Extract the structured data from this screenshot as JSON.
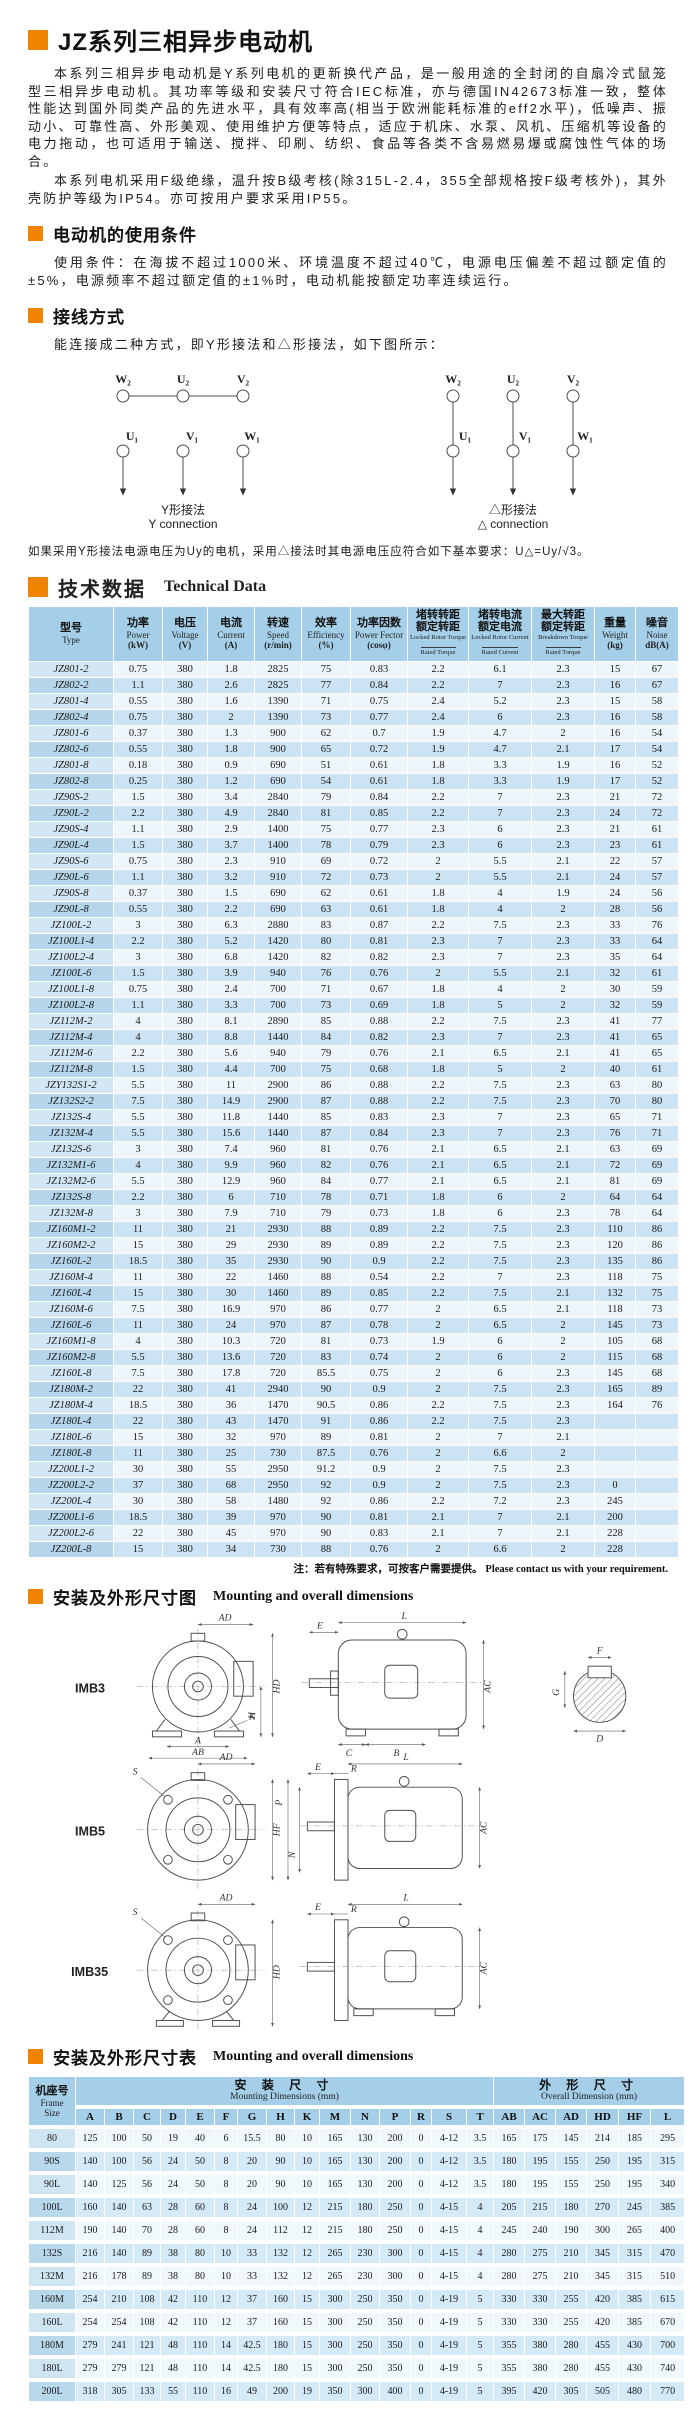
{
  "colors": {
    "accent_orange": "#f08300",
    "table_header_blue": "#a5cfe9",
    "row_blue": "#cbe3f3",
    "row_light": "#eef6fb"
  },
  "doc": {
    "title": "JZ系列三相异步电动机"
  },
  "intro": {
    "p1": "本系列三相异步电动机是Y系列电机的更新换代产品，是一般用途的全封闭的自扇冷式鼠笼型三相异步电动机。其功率等级和安装尺寸符合IEC标准，亦与德国IN42673标准一致，整体性能达到国外同类产品的先进水平，具有效率高(相当于欧洲能耗标准的eff2水平)，低噪声、振动小、可靠性高、外形美观、使用维护方便等特点，适应于机床、水泵、风机、压缩机等设备的电力拖动，也可适用于输送、搅拌、印刷、纺织、食品等各类不含易燃易爆或腐蚀性气体的场合。",
    "p2": "本系列电机采用F级绝缘，温升按B级考核(除315L-2.4，355全部规格按F级考核外)，其外壳防护等级为IP54。亦可按用户要求采用IP55。"
  },
  "usage": {
    "title": "电动机的使用条件",
    "body": "使用条件：在海拔不超过1000米、环境温度不超过40℃，电源电压偏差不超过额定值的±5%，电源频率不超过额定值的±1%时，电动机能按额定功率连续运行。"
  },
  "wiring": {
    "title": "接线方式",
    "intro": "能连接成二种方式，即Y形接法和△形接法，如下图所示：",
    "top": [
      "W₂",
      "U₂",
      "V₂"
    ],
    "bottom": [
      "U₁",
      "V₁",
      "W₁"
    ],
    "y_zh": "Y形接法",
    "y_en": "Y connection",
    "d_zh": "△形接法",
    "d_en": "△ connection",
    "formula": "如果采用Y形接法电源电压为Uy的电机，采用△接法时其电源电压应符合如下基本要求：U△=Uy/√3。"
  },
  "technical_table": {
    "title_zh": "技术数据",
    "title_en": "Technical Data",
    "headers": [
      {
        "zh": "型号",
        "en": "Type"
      },
      {
        "zh": "功率",
        "en": "Power",
        "unit": "(kW)"
      },
      {
        "zh": "电压",
        "en": "Voltage",
        "unit": "(V)"
      },
      {
        "zh": "电流",
        "en": "Current",
        "unit": "(A)"
      },
      {
        "zh": "转速",
        "en": "Speed",
        "unit": "(r/min)"
      },
      {
        "zh": "效率",
        "en": "Efficiency",
        "unit": "(%)"
      },
      {
        "zh": "功率因数",
        "en": "Power Fector",
        "unit": "(cosφ)"
      },
      {
        "zh": "堵转转距",
        "zh2": "额定转距",
        "en": "Locked Rotor Torque",
        "en2": "Rated Torque"
      },
      {
        "zh": "堵转电流",
        "zh2": "额定电流",
        "en": "Locked Rotor Current",
        "en2": "Rated Current"
      },
      {
        "zh": "最大转距",
        "zh2": "额定转距",
        "en": "Breakdown Torque",
        "en2": "Rated Torque"
      },
      {
        "zh": "重量",
        "en": "Weight",
        "unit": "(kg)"
      },
      {
        "zh": "噪音",
        "en": "Noise",
        "unit": "dB(A)"
      }
    ],
    "rows": [
      [
        "JZ801-2",
        "0.75",
        "380",
        "1.8",
        "2825",
        "75",
        "0.83",
        "2.2",
        "6.1",
        "2.3",
        "15",
        "67"
      ],
      [
        "JZ802-2",
        "1.1",
        "380",
        "2.6",
        "2825",
        "77",
        "0.84",
        "2.2",
        "7",
        "2.3",
        "16",
        "67"
      ],
      [
        "JZ801-4",
        "0.55",
        "380",
        "1.6",
        "1390",
        "71",
        "0.75",
        "2.4",
        "5.2",
        "2.3",
        "15",
        "58"
      ],
      [
        "JZ802-4",
        "0.75",
        "380",
        "2",
        "1390",
        "73",
        "0.77",
        "2.4",
        "6",
        "2.3",
        "16",
        "58"
      ],
      [
        "JZ801-6",
        "0.37",
        "380",
        "1.3",
        "900",
        "62",
        "0.7",
        "1.9",
        "4.7",
        "2",
        "16",
        "54"
      ],
      [
        "JZ802-6",
        "0.55",
        "380",
        "1.8",
        "900",
        "65",
        "0.72",
        "1.9",
        "4.7",
        "2.1",
        "17",
        "54"
      ],
      [
        "JZ801-8",
        "0.18",
        "380",
        "0.9",
        "690",
        "51",
        "0.61",
        "1.8",
        "3.3",
        "1.9",
        "16",
        "52"
      ],
      [
        "JZ802-8",
        "0.25",
        "380",
        "1.2",
        "690",
        "54",
        "0.61",
        "1.8",
        "3.3",
        "1.9",
        "17",
        "52"
      ],
      [
        "JZ90S-2",
        "1.5",
        "380",
        "3.4",
        "2840",
        "79",
        "0.84",
        "2.2",
        "7",
        "2.3",
        "21",
        "72"
      ],
      [
        "JZ90L-2",
        "2.2",
        "380",
        "4.9",
        "2840",
        "81",
        "0.85",
        "2.2",
        "7",
        "2.3",
        "24",
        "72"
      ],
      [
        "JZ90S-4",
        "1.1",
        "380",
        "2.9",
        "1400",
        "75",
        "0.77",
        "2.3",
        "6",
        "2.3",
        "21",
        "61"
      ],
      [
        "JZ90L-4",
        "1.5",
        "380",
        "3.7",
        "1400",
        "78",
        "0.79",
        "2.3",
        "6",
        "2.3",
        "23",
        "61"
      ],
      [
        "JZ90S-6",
        "0.75",
        "380",
        "2.3",
        "910",
        "69",
        "0.72",
        "2",
        "5.5",
        "2.1",
        "22",
        "57"
      ],
      [
        "JZ90L-6",
        "1.1",
        "380",
        "3.2",
        "910",
        "72",
        "0.73",
        "2",
        "5.5",
        "2.1",
        "24",
        "57"
      ],
      [
        "JZ90S-8",
        "0.37",
        "380",
        "1.5",
        "690",
        "62",
        "0.61",
        "1.8",
        "4",
        "1.9",
        "24",
        "56"
      ],
      [
        "JZ90L-8",
        "0.55",
        "380",
        "2.2",
        "690",
        "63",
        "0.61",
        "1.8",
        "4",
        "2",
        "28",
        "56"
      ],
      [
        "JZ100L-2",
        "3",
        "380",
        "6.3",
        "2880",
        "83",
        "0.87",
        "2.2",
        "7.5",
        "2.3",
        "33",
        "76"
      ],
      [
        "JZ100L1-4",
        "2.2",
        "380",
        "5.2",
        "1420",
        "80",
        "0.81",
        "2.3",
        "7",
        "2.3",
        "33",
        "64"
      ],
      [
        "JZ100L2-4",
        "3",
        "380",
        "6.8",
        "1420",
        "82",
        "0.82",
        "2.3",
        "7",
        "2.3",
        "35",
        "64"
      ],
      [
        "JZ100L-6",
        "1.5",
        "380",
        "3.9",
        "940",
        "76",
        "0.76",
        "2",
        "5.5",
        "2.1",
        "32",
        "61"
      ],
      [
        "JZ100L1-8",
        "0.75",
        "380",
        "2.4",
        "700",
        "71",
        "0.67",
        "1.8",
        "4",
        "2",
        "30",
        "59"
      ],
      [
        "JZ100L2-8",
        "1.1",
        "380",
        "3.3",
        "700",
        "73",
        "0.69",
        "1.8",
        "5",
        "2",
        "32",
        "59"
      ],
      [
        "JZ112M-2",
        "4",
        "380",
        "8.1",
        "2890",
        "85",
        "0.88",
        "2.2",
        "7.5",
        "2.3",
        "41",
        "77"
      ],
      [
        "JZ112M-4",
        "4",
        "380",
        "8.8",
        "1440",
        "84",
        "0.82",
        "2.3",
        "7",
        "2.3",
        "41",
        "65"
      ],
      [
        "JZ112M-6",
        "2.2",
        "380",
        "5.6",
        "940",
        "79",
        "0.76",
        "2.1",
        "6.5",
        "2.1",
        "41",
        "65"
      ],
      [
        "JZ112M-8",
        "1.5",
        "380",
        "4.4",
        "700",
        "75",
        "0.68",
        "1.8",
        "5",
        "2",
        "40",
        "61"
      ],
      [
        "JZY132S1-2",
        "5.5",
        "380",
        "11",
        "2900",
        "86",
        "0.88",
        "2.2",
        "7.5",
        "2.3",
        "63",
        "80"
      ],
      [
        "JZ132S2-2",
        "7.5",
        "380",
        "14.9",
        "2900",
        "87",
        "0.88",
        "2.2",
        "7.5",
        "2.3",
        "70",
        "80"
      ],
      [
        "JZ132S-4",
        "5.5",
        "380",
        "11.8",
        "1440",
        "85",
        "0.83",
        "2.3",
        "7",
        "2.3",
        "65",
        "71"
      ],
      [
        "JZ132M-4",
        "5.5",
        "380",
        "15.6",
        "1440",
        "87",
        "0.84",
        "2.3",
        "7",
        "2.3",
        "76",
        "71"
      ],
      [
        "JZ132S-6",
        "3",
        "380",
        "7.4",
        "960",
        "81",
        "0.76",
        "2.1",
        "6.5",
        "2.1",
        "63",
        "69"
      ],
      [
        "JZ132M1-6",
        "4",
        "380",
        "9.9",
        "960",
        "82",
        "0.76",
        "2.1",
        "6.5",
        "2.1",
        "72",
        "69"
      ],
      [
        "JZ132M2-6",
        "5.5",
        "380",
        "12.9",
        "960",
        "84",
        "0.77",
        "2.1",
        "6.5",
        "2.1",
        "81",
        "69"
      ],
      [
        "JZ132S-8",
        "2.2",
        "380",
        "6",
        "710",
        "78",
        "0.71",
        "1.8",
        "6",
        "2",
        "64",
        "64"
      ],
      [
        "JZ132M-8",
        "3",
        "380",
        "7.9",
        "710",
        "79",
        "0.73",
        "1.8",
        "6",
        "2.3",
        "78",
        "64"
      ],
      [
        "JZ160M1-2",
        "11",
        "380",
        "21",
        "2930",
        "88",
        "0.89",
        "2.2",
        "7.5",
        "2.3",
        "110",
        "86"
      ],
      [
        "JZ160M2-2",
        "15",
        "380",
        "29",
        "2930",
        "89",
        "0.89",
        "2.2",
        "7.5",
        "2.3",
        "120",
        "86"
      ],
      [
        "JZ160L-2",
        "18.5",
        "380",
        "35",
        "2930",
        "90",
        "0.9",
        "2.2",
        "7.5",
        "2.3",
        "135",
        "86"
      ],
      [
        "JZ160M-4",
        "11",
        "380",
        "22",
        "1460",
        "88",
        "0.54",
        "2.2",
        "7",
        "2.3",
        "118",
        "75"
      ],
      [
        "JZ160L-4",
        "15",
        "380",
        "30",
        "1460",
        "89",
        "0.85",
        "2.2",
        "7.5",
        "2.1",
        "132",
        "75"
      ],
      [
        "JZ160M-6",
        "7.5",
        "380",
        "16.9",
        "970",
        "86",
        "0.77",
        "2",
        "6.5",
        "2.1",
        "118",
        "73"
      ],
      [
        "JZ160L-6",
        "11",
        "380",
        "24",
        "970",
        "87",
        "0.78",
        "2",
        "6.5",
        "2",
        "145",
        "73"
      ],
      [
        "JZ160M1-8",
        "4",
        "380",
        "10.3",
        "720",
        "81",
        "0.73",
        "1.9",
        "6",
        "2",
        "105",
        "68"
      ],
      [
        "JZ160M2-8",
        "5.5",
        "380",
        "13.6",
        "720",
        "83",
        "0.74",
        "2",
        "6",
        "2",
        "115",
        "68"
      ],
      [
        "JZ160L-8",
        "7.5",
        "380",
        "17.8",
        "720",
        "85.5",
        "0.75",
        "2",
        "6",
        "2.3",
        "145",
        "68"
      ],
      [
        "JZ180M-2",
        "22",
        "380",
        "41",
        "2940",
        "90",
        "0.9",
        "2",
        "7.5",
        "2.3",
        "165",
        "89"
      ],
      [
        "JZ180M-4",
        "18.5",
        "380",
        "36",
        "1470",
        "90.5",
        "0.86",
        "2.2",
        "7.5",
        "2.3",
        "164",
        "76"
      ],
      [
        "JZ180L-4",
        "22",
        "380",
        "43",
        "1470",
        "91",
        "0.86",
        "2.2",
        "7.5",
        "2.3",
        "",
        ""
      ],
      [
        "JZ180L-6",
        "15",
        "380",
        "32",
        "970",
        "89",
        "0.81",
        "2",
        "7",
        "2.1",
        "",
        ""
      ],
      [
        "JZ180L-8",
        "11",
        "380",
        "25",
        "730",
        "87.5",
        "0.76",
        "2",
        "6.6",
        "2",
        "",
        ""
      ],
      [
        "JZ200L1-2",
        "30",
        "380",
        "55",
        "2950",
        "91.2",
        "0.9",
        "2",
        "7.5",
        "2.3",
        "",
        ""
      ],
      [
        "JZ200L2-2",
        "37",
        "380",
        "68",
        "2950",
        "92",
        "0.9",
        "2",
        "7.5",
        "2.3",
        "0",
        ""
      ],
      [
        "JZ200L-4",
        "30",
        "380",
        "58",
        "1480",
        "92",
        "0.86",
        "2.2",
        "7.2",
        "2.3",
        "245",
        ""
      ],
      [
        "JZ200L1-6",
        "18.5",
        "380",
        "39",
        "970",
        "90",
        "0.81",
        "2.1",
        "7",
        "2.1",
        "200",
        ""
      ],
      [
        "JZ200L2-6",
        "22",
        "380",
        "45",
        "970",
        "90",
        "0.83",
        "2.1",
        "7",
        "2.1",
        "228",
        ""
      ],
      [
        "JZ200L-8",
        "15",
        "380",
        "34",
        "730",
        "88",
        "0.76",
        "2",
        "6.6",
        "2",
        "228",
        ""
      ]
    ],
    "note_zh": "注：若有特殊要求，可按客户需要提供。",
    "note_en": "Please contact us with your requirement."
  },
  "mounting_figure": {
    "title_zh": "安装及外形尺寸图",
    "title_en": "Mounting and overall dimensions",
    "drawings": {
      "imb3": "IMB3",
      "imb5": "IMB5",
      "imb35": "IMB35"
    },
    "dims": {
      "AD": "AD",
      "HD": "HD",
      "H": "H",
      "K": "K",
      "A": "A",
      "AB": "AB",
      "L": "L",
      "E": "E",
      "AC": "AC",
      "C": "C",
      "B": "B",
      "F": "F",
      "G": "G",
      "D": "D",
      "S": "S",
      "HF": "HF",
      "P": "P",
      "N": "N",
      "R": "R"
    }
  },
  "dimensions_table": {
    "title_zh": "安装及外形尺寸表",
    "title_en": "Mounting and overall dimensions",
    "frame_zh": "机座号",
    "frame_en1": "Frame",
    "frame_en2": "Size",
    "mounting_zh": "安 装 尺 寸",
    "mounting_en": "Mounting Dimensions (mm)",
    "overall_zh": "外 形 尺 寸",
    "overall_en": "Overall Dimension (mm)",
    "mounting_cols": [
      "A",
      "B",
      "C",
      "D",
      "E",
      "F",
      "G",
      "H",
      "K",
      "M",
      "N",
      "P",
      "R",
      "S",
      "T"
    ],
    "overall_cols": [
      "AB",
      "AC",
      "AD",
      "HD",
      "HF",
      "L"
    ],
    "rows": [
      [
        "80",
        "125",
        "100",
        "50",
        "19",
        "40",
        "6",
        "15.5",
        "80",
        "10",
        "165",
        "130",
        "200",
        "0",
        "4-12",
        "3.5",
        "165",
        "175",
        "145",
        "214",
        "185",
        "295"
      ],
      [
        "90S",
        "140",
        "100",
        "56",
        "24",
        "50",
        "8",
        "20",
        "90",
        "10",
        "165",
        "130",
        "200",
        "0",
        "4-12",
        "3.5",
        "180",
        "195",
        "155",
        "250",
        "195",
        "315"
      ],
      [
        "90L",
        "140",
        "125",
        "56",
        "24",
        "50",
        "8",
        "20",
        "90",
        "10",
        "165",
        "130",
        "200",
        "0",
        "4-12",
        "3.5",
        "180",
        "195",
        "155",
        "250",
        "195",
        "340"
      ],
      [
        "100L",
        "160",
        "140",
        "63",
        "28",
        "60",
        "8",
        "24",
        "100",
        "12",
        "215",
        "180",
        "250",
        "0",
        "4-15",
        "4",
        "205",
        "215",
        "180",
        "270",
        "245",
        "385"
      ],
      [
        "112M",
        "190",
        "140",
        "70",
        "28",
        "60",
        "8",
        "24",
        "112",
        "12",
        "215",
        "180",
        "250",
        "0",
        "4-15",
        "4",
        "245",
        "240",
        "190",
        "300",
        "265",
        "400"
      ],
      [
        "132S",
        "216",
        "140",
        "89",
        "38",
        "80",
        "10",
        "33",
        "132",
        "12",
        "265",
        "230",
        "300",
        "0",
        "4-15",
        "4",
        "280",
        "275",
        "210",
        "345",
        "315",
        "470"
      ],
      [
        "132M",
        "216",
        "178",
        "89",
        "38",
        "80",
        "10",
        "33",
        "132",
        "12",
        "265",
        "230",
        "300",
        "0",
        "4-15",
        "4",
        "280",
        "275",
        "210",
        "345",
        "315",
        "510"
      ],
      [
        "160M",
        "254",
        "210",
        "108",
        "42",
        "110",
        "12",
        "37",
        "160",
        "15",
        "300",
        "250",
        "350",
        "0",
        "4-19",
        "5",
        "330",
        "330",
        "255",
        "420",
        "385",
        "615"
      ],
      [
        "160L",
        "254",
        "254",
        "108",
        "42",
        "110",
        "12",
        "37",
        "160",
        "15",
        "300",
        "250",
        "350",
        "0",
        "4-19",
        "5",
        "330",
        "330",
        "255",
        "420",
        "385",
        "670"
      ],
      [
        "180M",
        "279",
        "241",
        "121",
        "48",
        "110",
        "14",
        "42.5",
        "180",
        "15",
        "300",
        "250",
        "350",
        "0",
        "4-19",
        "5",
        "355",
        "380",
        "280",
        "455",
        "430",
        "700"
      ],
      [
        "180L",
        "279",
        "279",
        "121",
        "48",
        "110",
        "14",
        "42.5",
        "180",
        "15",
        "300",
        "250",
        "350",
        "0",
        "4-19",
        "5",
        "355",
        "380",
        "280",
        "455",
        "430",
        "740"
      ],
      [
        "200L",
        "318",
        "305",
        "133",
        "55",
        "110",
        "16",
        "49",
        "200",
        "19",
        "350",
        "300",
        "400",
        "0",
        "4-19",
        "5",
        "395",
        "420",
        "305",
        "505",
        "480",
        "770"
      ]
    ]
  }
}
